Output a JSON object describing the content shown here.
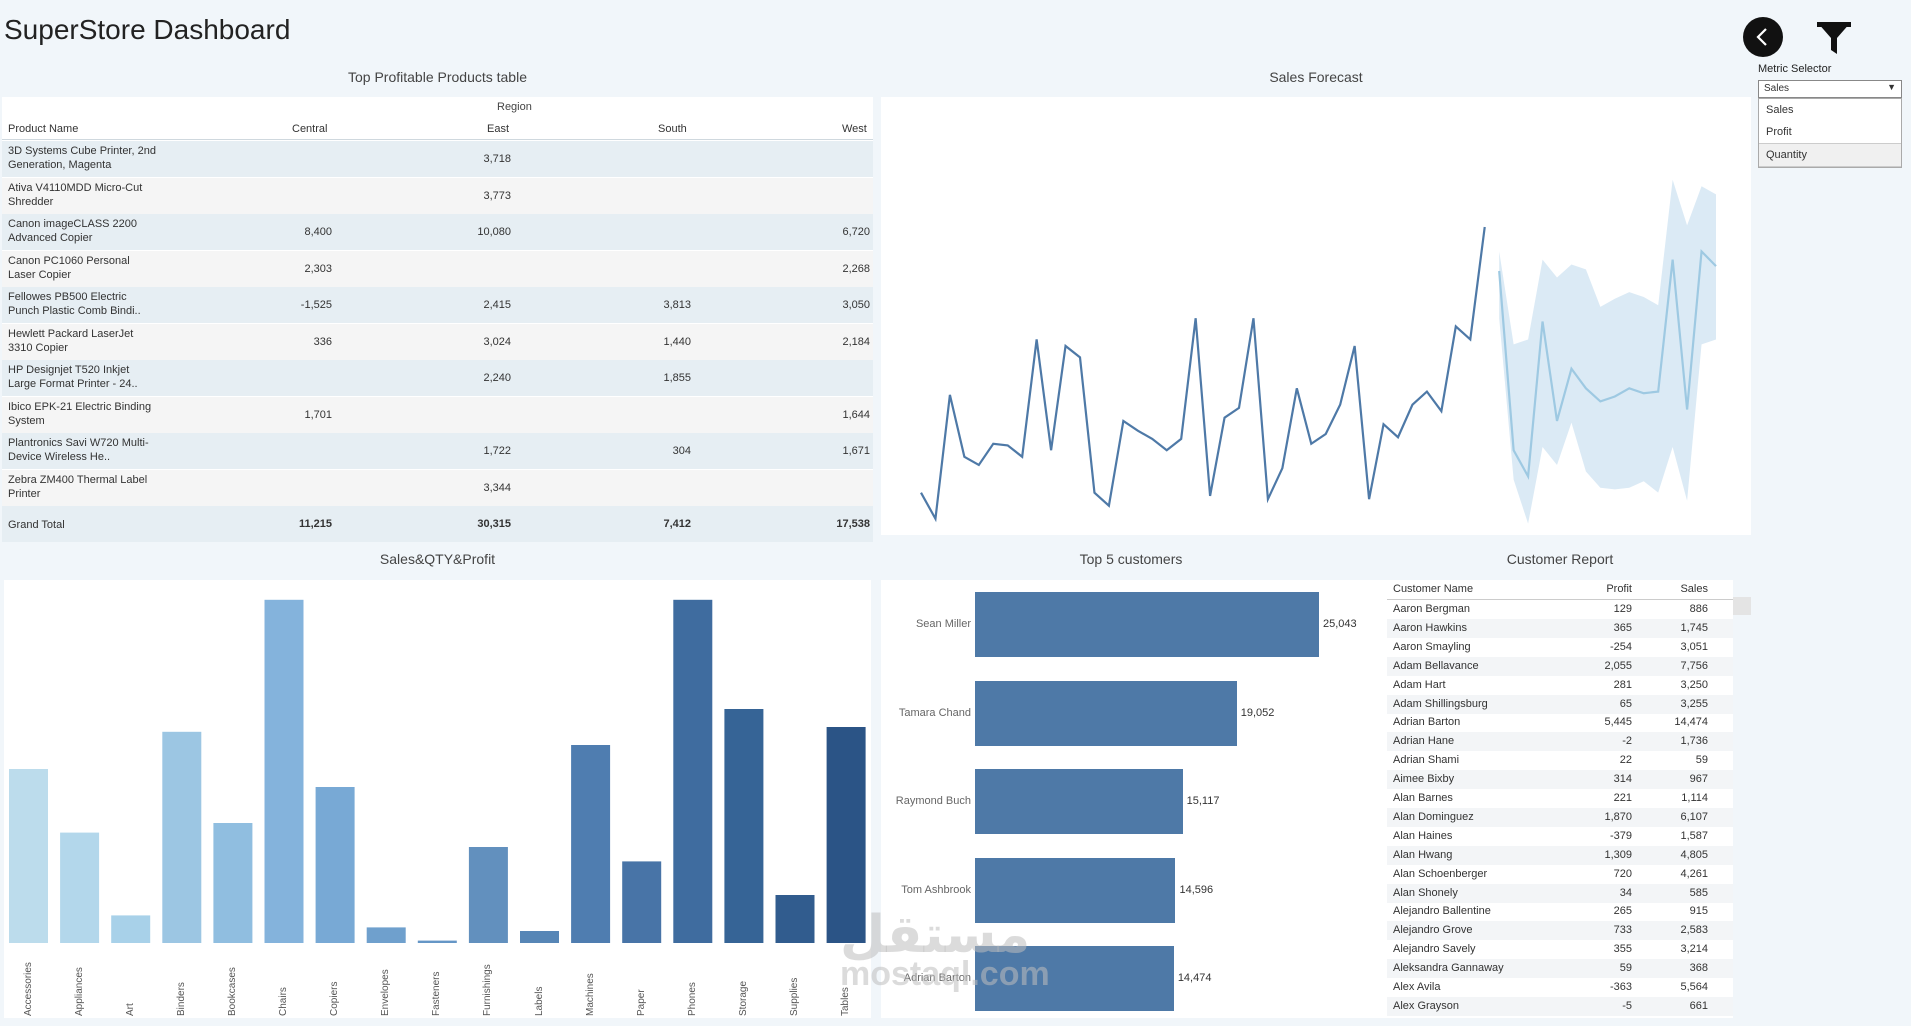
{
  "dashboard": {
    "title": "SuperStore Dashboard"
  },
  "colors": {
    "accent": "#4e79a7",
    "forecast": "#9ec9e2",
    "band": "#dbeaf5",
    "row_alt": "#e6eef3"
  },
  "controls": {
    "back_icon": "chevron-left-icon",
    "filter_icon": "funnel-icon",
    "metric_label": "Metric Selector",
    "metric_selected": "Sales",
    "metric_options": [
      "Sales",
      "Profit",
      "Quantity"
    ]
  },
  "products_table": {
    "title": "Top Profitable Products table",
    "region_header": "Region",
    "col_product": "Product Name",
    "columns": [
      "Central",
      "East",
      "South",
      "West"
    ],
    "rows": [
      {
        "name": "3D Systems Cube Printer, 2nd Generation, Magenta",
        "central": "",
        "east": "3,718",
        "south": "",
        "west": ""
      },
      {
        "name": "Ativa V4110MDD Micro-Cut Shredder",
        "central": "",
        "east": "3,773",
        "south": "",
        "west": ""
      },
      {
        "name": "Canon imageCLASS 2200 Advanced Copier",
        "central": "8,400",
        "east": "10,080",
        "south": "",
        "west": "6,720"
      },
      {
        "name": "Canon PC1060 Personal Laser Copier",
        "central": "2,303",
        "east": "",
        "south": "",
        "west": "2,268"
      },
      {
        "name": "Fellowes PB500 Electric Punch Plastic Comb Bindi..",
        "central": "-1,525",
        "east": "2,415",
        "south": "3,813",
        "west": "3,050"
      },
      {
        "name": "Hewlett Packard LaserJet 3310 Copier",
        "central": "336",
        "east": "3,024",
        "south": "1,440",
        "west": "2,184"
      },
      {
        "name": "HP Designjet T520 Inkjet Large Format Printer - 24..",
        "central": "",
        "east": "2,240",
        "south": "1,855",
        "west": ""
      },
      {
        "name": "Ibico EPK-21 Electric Binding System",
        "central": "1,701",
        "east": "",
        "south": "",
        "west": "1,644"
      },
      {
        "name": "Plantronics Savi W720 Multi-Device Wireless He..",
        "central": "",
        "east": "1,722",
        "south": "304",
        "west": "1,671"
      },
      {
        "name": "Zebra ZM400 Thermal Label Printer",
        "central": "",
        "east": "3,344",
        "south": "",
        "west": ""
      }
    ],
    "total": {
      "name": "Grand Total",
      "central": "11,215",
      "east": "30,315",
      "south": "7,412",
      "west": "17,538"
    }
  },
  "forecast": {
    "title": "Sales Forecast",
    "actual": [
      18,
      2,
      78,
      40,
      35,
      48,
      47,
      40,
      112,
      44,
      108,
      101,
      18,
      10,
      62,
      56,
      51,
      44,
      51,
      125,
      16,
      64,
      70,
      125,
      14,
      33,
      82,
      48,
      54,
      72,
      108,
      14,
      60,
      52,
      72,
      80,
      68,
      120,
      112,
      181
    ],
    "forecast": [
      154,
      44,
      28,
      123,
      62,
      94,
      82,
      74,
      77,
      82,
      79,
      80,
      161,
      69,
      166,
      157
    ],
    "band_high": [
      166,
      109,
      112,
      161,
      150,
      158,
      155,
      132,
      137,
      141,
      138,
      133,
      210,
      182,
      206,
      201
    ],
    "band_low": [
      125,
      26,
      -1,
      46,
      35,
      61,
      31,
      21,
      20,
      21,
      25,
      18,
      46,
      13,
      109,
      112
    ]
  },
  "sales_qty": {
    "title": "Sales&QTY&Profit",
    "categories": [
      "Accessories",
      "Appliances",
      "Art",
      "Binders",
      "Bookcases",
      "Chairs",
      "Copiers",
      "Envelopes",
      "Fasteners",
      "Furnishings",
      "Labels",
      "Machines",
      "Paper",
      "Phones",
      "Storage",
      "Supplies",
      "Tables"
    ],
    "values": [
      145,
      92,
      23,
      176,
      100,
      286,
      130,
      13,
      2,
      80,
      10,
      165,
      68,
      286,
      195,
      40,
      180
    ],
    "colors": [
      "#bcdcec",
      "#b3d7eb",
      "#a8d1e9",
      "#9cc6e3",
      "#90bee0",
      "#84b3dc",
      "#78a9d5",
      "#6fa0cd",
      "#6596c6",
      "#6290be",
      "#5786b6",
      "#4f7db0",
      "#4874a7",
      "#3f6c9f",
      "#366496",
      "#315c8e",
      "#2b5486"
    ]
  },
  "top5": {
    "title": "Top 5 customers",
    "customers": [
      {
        "name": "Sean Miller",
        "value": 25043,
        "label": "25,043"
      },
      {
        "name": "Tamara Chand",
        "value": 19052,
        "label": "19,052"
      },
      {
        "name": "Raymond Buch",
        "value": 15117,
        "label": "15,117"
      },
      {
        "name": "Tom Ashbrook",
        "value": 14596,
        "label": "14,596"
      },
      {
        "name": "Adrian Barton",
        "value": 14474,
        "label": "14,474"
      }
    ]
  },
  "customer_report": {
    "title": "Customer Report",
    "col_name": "Customer Name",
    "col_profit": "Profit",
    "col_sales": "Sales",
    "rows": [
      [
        "Aaron Bergman",
        "129",
        "886"
      ],
      [
        "Aaron Hawkins",
        "365",
        "1,745"
      ],
      [
        "Aaron Smayling",
        "-254",
        "3,051"
      ],
      [
        "Adam Bellavance",
        "2,055",
        "7,756"
      ],
      [
        "Adam Hart",
        "281",
        "3,250"
      ],
      [
        "Adam Shillingsburg",
        "65",
        "3,255"
      ],
      [
        "Adrian Barton",
        "5,445",
        "14,474"
      ],
      [
        "Adrian Hane",
        "-2",
        "1,736"
      ],
      [
        "Adrian Shami",
        "22",
        "59"
      ],
      [
        "Aimee Bixby",
        "314",
        "967"
      ],
      [
        "Alan Barnes",
        "221",
        "1,114"
      ],
      [
        "Alan Dominguez",
        "1,870",
        "6,107"
      ],
      [
        "Alan Haines",
        "-379",
        "1,587"
      ],
      [
        "Alan Hwang",
        "1,309",
        "4,805"
      ],
      [
        "Alan Schoenberger",
        "720",
        "4,261"
      ],
      [
        "Alan Shonely",
        "34",
        "585"
      ],
      [
        "Alejandro Ballentine",
        "265",
        "915"
      ],
      [
        "Alejandro Grove",
        "733",
        "2,583"
      ],
      [
        "Alejandro Savely",
        "355",
        "3,214"
      ],
      [
        "Aleksandra Gannaway",
        "59",
        "368"
      ],
      [
        "Alex Avila",
        "-363",
        "5,564"
      ],
      [
        "Alex Grayson",
        "-5",
        "661"
      ]
    ]
  },
  "watermark": {
    "line1": "مستقل",
    "line2": "mostaql.com"
  }
}
